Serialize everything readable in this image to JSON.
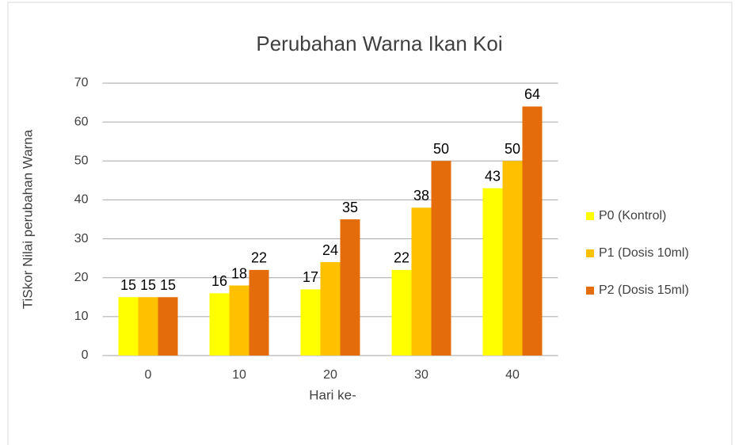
{
  "chart_data": {
    "type": "bar",
    "title": "Perubahan Warna Ikan Koi",
    "xlabel": "Hari ke-",
    "ylabel": "TiSkor Nilai perubahan Warna",
    "categories": [
      "0",
      "10",
      "20",
      "30",
      "40"
    ],
    "series": [
      {
        "name": "P0 (Kontrol)",
        "color": "#ffff00",
        "values": [
          15,
          16,
          17,
          22,
          43
        ]
      },
      {
        "name": "P1 (Dosis 10ml)",
        "color": "#ffc000",
        "values": [
          15,
          18,
          24,
          38,
          50
        ]
      },
      {
        "name": "P2 (Dosis 15ml)",
        "color": "#e46c0a",
        "values": [
          15,
          22,
          35,
          50,
          64
        ]
      }
    ],
    "ylim": [
      0,
      70
    ],
    "yticks": [
      0,
      10,
      20,
      30,
      40,
      50,
      60,
      70
    ],
    "grid": true,
    "legend": "right"
  }
}
